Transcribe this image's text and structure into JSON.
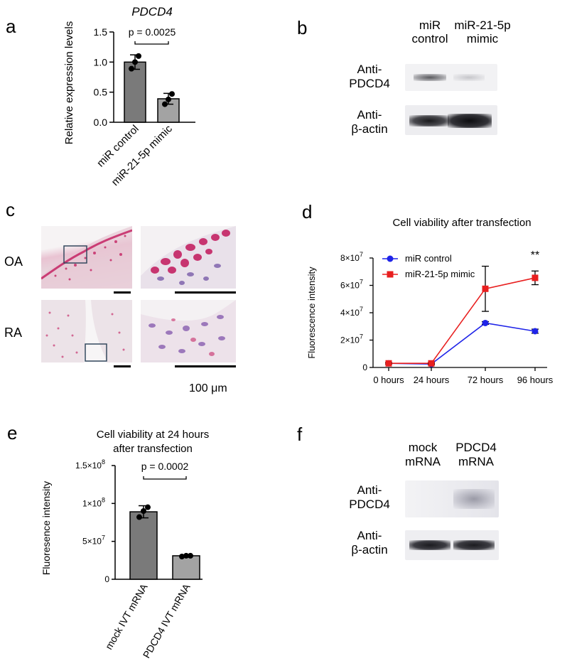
{
  "panels": {
    "a": {
      "letter": "a",
      "chart_data": {
        "type": "bar",
        "title": "PDCD4",
        "ylabel": "Relative expression levels",
        "xlabel": "",
        "categories": [
          "miR control",
          "miR-21-5p mimic"
        ],
        "values": [
          1.0,
          0.39
        ],
        "errors": [
          0.12,
          0.09
        ],
        "points": [
          [
            0.89,
            1.0,
            1.1
          ],
          [
            0.3,
            0.38,
            0.47
          ]
        ],
        "ylim": [
          0,
          1.5
        ],
        "yticks": [
          "0.0",
          "0.5",
          "1.0",
          "1.5"
        ],
        "ytick_values": [
          0,
          0.5,
          1.0,
          1.5
        ],
        "significance": "p = 0.0025",
        "bar_colors": [
          "#7a7a7a",
          "#a3a3a3"
        ]
      }
    },
    "b": {
      "letter": "b",
      "lane1": "miR\ncontrol",
      "lane1_lines": [
        "miR",
        "control"
      ],
      "lane2_lines": [
        "miR-21-5p",
        "mimic"
      ],
      "row1_lines": [
        "Anti-",
        "PDCD4"
      ],
      "row2_lines": [
        "Anti-",
        "β-actin"
      ]
    },
    "c": {
      "letter": "c",
      "row1": "OA",
      "row2": "RA",
      "scale": "100 μm"
    },
    "d": {
      "letter": "d",
      "chart_data": {
        "type": "line",
        "title": "Cell viability after transfection",
        "ylabel": "Fluorescence intensity",
        "categories": [
          "0 hours",
          "24 hours",
          "72 hours",
          "96 hours"
        ],
        "series": [
          {
            "name": "miR control",
            "values": [
              3000000.0,
              2500000.0,
              32500000.0,
              26500000.0
            ],
            "errors": [
              500000.0,
              500000.0,
              1000000.0,
              1500000.0
            ],
            "color": "#1f24e8",
            "marker": "circle"
          },
          {
            "name": "miR-21-5p mimic",
            "values": [
              3000000.0,
              3000000.0,
              57500000.0,
              65500000.0
            ],
            "errors": [
              500000.0,
              500000.0,
              16500000.0,
              5000000.0
            ],
            "color": "#e81f1f",
            "marker": "square"
          }
        ],
        "ylim": [
          0,
          80000000.0
        ],
        "ytick_values": [
          0,
          20000000.0,
          40000000.0,
          60000000.0,
          80000000.0
        ],
        "yticks": [
          "0",
          "2×10",
          "4×10",
          "6×10",
          "8×10"
        ],
        "ytick_exp": "7",
        "annotation": "**",
        "legend": "top-left"
      }
    },
    "e": {
      "letter": "e",
      "chart_data": {
        "type": "bar",
        "title_lines": [
          "Cell viability at 24 hours",
          "after transfection"
        ],
        "ylabel": "Fluoresence intensity",
        "categories": [
          "mock IVT mRNA",
          "PDCD4 IVT mRNA"
        ],
        "values": [
          89000000.0,
          31000000.0
        ],
        "errors": [
          8000000.0,
          1000000.0
        ],
        "points": [
          [
            82000000.0,
            90000000.0,
            95000000.0
          ],
          [
            30000000.0,
            31000000.0,
            31000000.0
          ]
        ],
        "ylim": [
          0,
          150000000.0
        ],
        "ytick_values": [
          0,
          50000000.0,
          100000000.0,
          150000000.0
        ],
        "yticks": [
          "0",
          "5×10",
          "1×10",
          "1.5×10"
        ],
        "ytick_exps": [
          "",
          "7",
          "8",
          "8"
        ],
        "significance": "p = 0.0002",
        "bar_colors": [
          "#7a7a7a",
          "#a3a3a3"
        ]
      }
    },
    "f": {
      "letter": "f",
      "lane1_lines": [
        "mock",
        "mRNA"
      ],
      "lane2_lines": [
        "PDCD4",
        "mRNA"
      ],
      "row1_lines": [
        "Anti-",
        "PDCD4"
      ],
      "row2_lines": [
        "Anti-",
        "β-actin"
      ]
    }
  }
}
